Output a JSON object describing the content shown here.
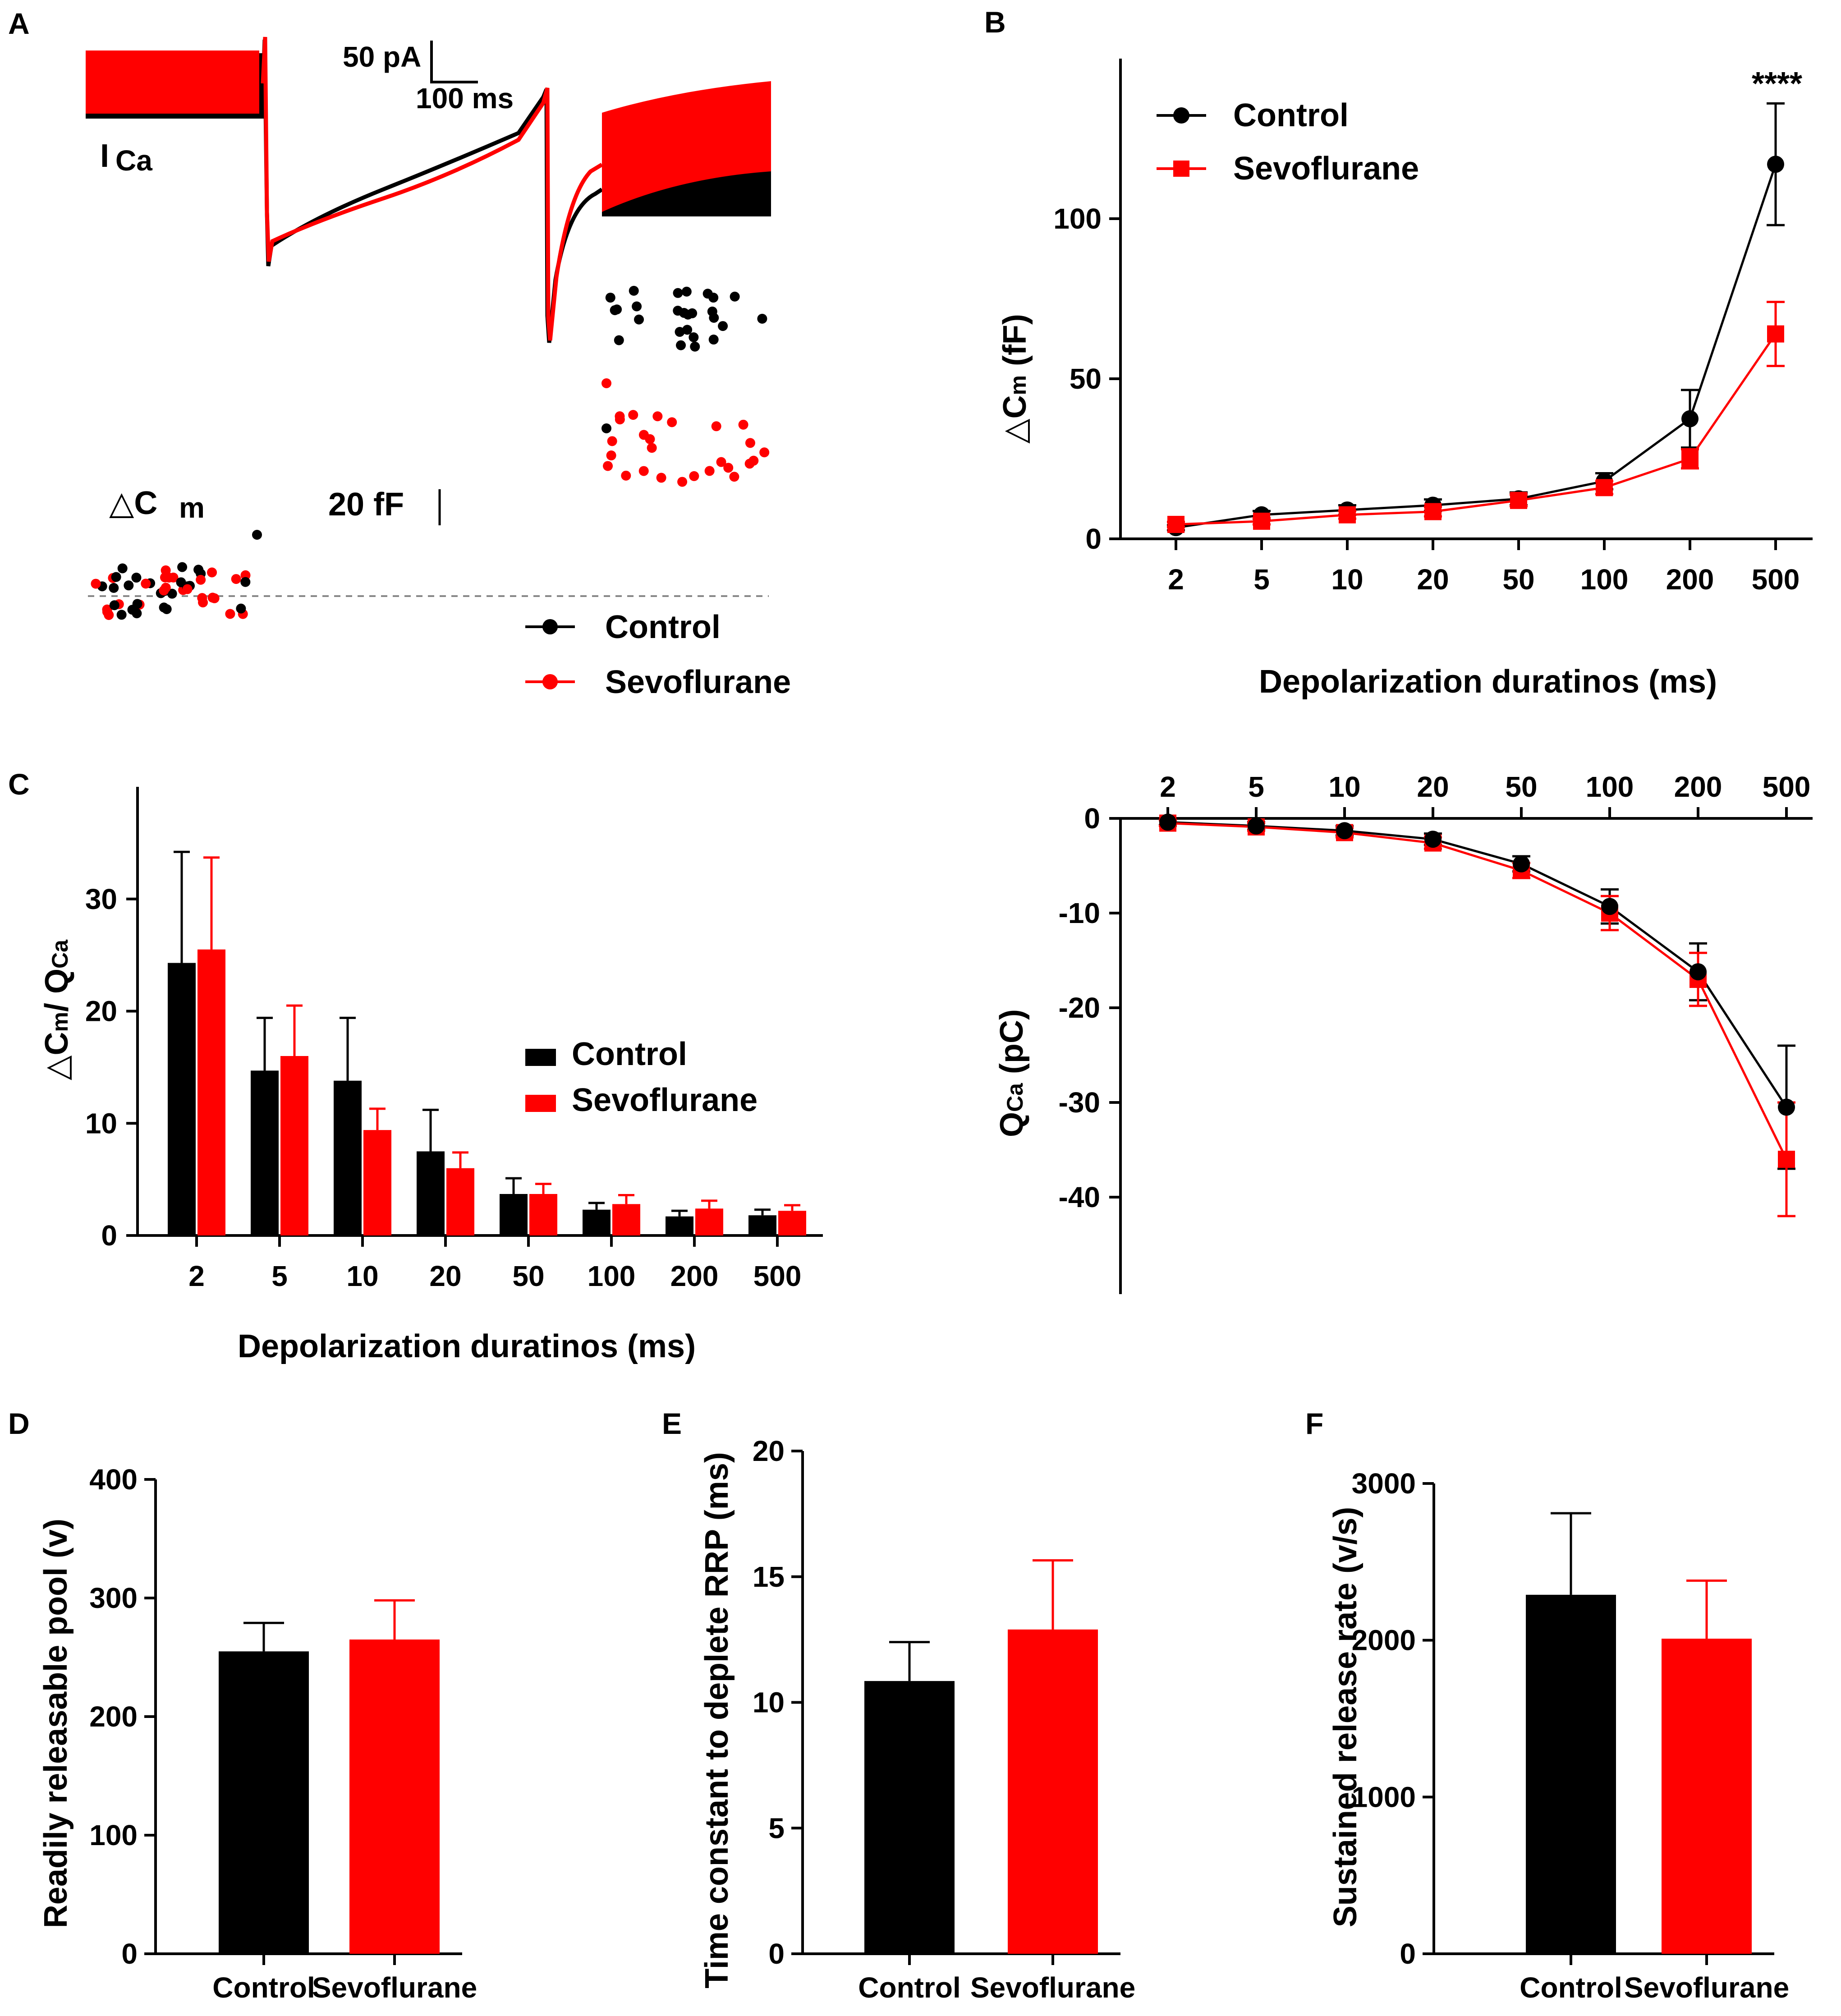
{
  "colors": {
    "control": "#000000",
    "sevoflurane": "#ff0000",
    "baseline": "#888888"
  },
  "panels": {
    "a": "A",
    "b": "B",
    "c": "C",
    "d": "D",
    "e": "E",
    "f": "F"
  },
  "traces": {
    "ica_label": "I",
    "ica_sub": "Ca",
    "scale_current": "50 pA",
    "scale_time": "100 ms",
    "cm_label": "△C",
    "cm_sub": "m",
    "scale_cap": "20 fF",
    "legend": {
      "control": "Control",
      "sevoflurane": "Sevoflurane"
    }
  },
  "chart_data": [
    {
      "id": "B",
      "type": "line",
      "categories": [
        "2",
        "5",
        "10",
        "20",
        "50",
        "100",
        "200",
        "500"
      ],
      "xlabel": "Depolarization duratinos (ms)",
      "ylabel_main": "△C",
      "ylabel_sub": "m",
      "ylabel_unit": " (fF)",
      "yticks": [
        0,
        50,
        100
      ],
      "ylim": [
        0,
        150
      ],
      "legend": [
        "Control",
        "Sevoflurane"
      ],
      "annotation": "****",
      "series": [
        {
          "name": "Control",
          "values": [
            3.5,
            7.5,
            9.0,
            10.5,
            12.5,
            18.0,
            37.5,
            117.0
          ],
          "errors": [
            0.8,
            1.2,
            1.5,
            1.8,
            2.0,
            2.5,
            9.0,
            19.0
          ]
        },
        {
          "name": "Sevoflurane",
          "values": [
            4.5,
            5.5,
            7.5,
            8.5,
            12.0,
            16.0,
            25.0,
            64.0
          ],
          "errors": [
            0.8,
            1.0,
            1.2,
            1.5,
            1.8,
            2.0,
            3.0,
            10.0
          ]
        }
      ]
    },
    {
      "id": "C",
      "type": "bar",
      "categories": [
        "2",
        "5",
        "10",
        "20",
        "50",
        "100",
        "200",
        "500"
      ],
      "xlabel": "Depolarization duratinos (ms)",
      "ylabel_a": "△C",
      "ylabel_b": "m",
      "ylabel_c": "/ Q",
      "ylabel_d": "Ca",
      "yticks": [
        0,
        10,
        20,
        30
      ],
      "ylim": [
        0,
        40
      ],
      "legend": [
        "Control",
        "Sevoflurane"
      ],
      "series": [
        {
          "name": "Control",
          "values": [
            24.3,
            14.7,
            13.8,
            7.5,
            3.7,
            2.3,
            1.7,
            1.8
          ],
          "errors": [
            9.9,
            4.7,
            5.6,
            3.7,
            1.4,
            0.6,
            0.5,
            0.5
          ]
        },
        {
          "name": "Sevoflurane",
          "values": [
            25.5,
            16.0,
            9.4,
            6.0,
            3.7,
            2.8,
            2.4,
            2.2
          ],
          "errors": [
            8.2,
            4.5,
            1.9,
            1.4,
            0.9,
            0.8,
            0.7,
            0.5
          ]
        }
      ]
    },
    {
      "id": "Qca",
      "type": "line",
      "categories": [
        "2",
        "5",
        "10",
        "20",
        "50",
        "100",
        "200",
        "500"
      ],
      "ylabel_main": "Q",
      "ylabel_sub": "Ca",
      "ylabel_unit": " (pC)",
      "yticks": [
        0,
        -10,
        -20,
        -30,
        -40
      ],
      "ylim": [
        -50,
        0
      ],
      "series": [
        {
          "name": "Control",
          "values": [
            -0.4,
            -0.8,
            -1.3,
            -2.2,
            -4.8,
            -9.3,
            -16.2,
            -30.5
          ],
          "errors": [
            0.3,
            0.4,
            0.5,
            0.6,
            0.8,
            1.8,
            3.0,
            6.5
          ]
        },
        {
          "name": "Sevoflurane",
          "values": [
            -0.5,
            -0.9,
            -1.5,
            -2.6,
            -5.5,
            -10.0,
            -17.0,
            -36.0
          ],
          "errors": [
            0.3,
            0.4,
            0.5,
            0.6,
            0.8,
            1.8,
            2.8,
            6.0
          ]
        }
      ]
    },
    {
      "id": "D",
      "type": "bar",
      "categories": [
        "Control",
        "Sevoflurane"
      ],
      "ylabel": "Readily releasable pool (v)",
      "yticks": [
        0,
        100,
        200,
        300,
        400
      ],
      "ylim": [
        0,
        400
      ],
      "values": [
        255,
        265
      ],
      "errors": [
        24,
        33
      ]
    },
    {
      "id": "E",
      "type": "bar",
      "categories": [
        "Control",
        "Sevoflurane"
      ],
      "ylabel": "Time constant to deplete RRP (ms)",
      "yticks": [
        0,
        5,
        10,
        15,
        20
      ],
      "ylim": [
        0,
        20
      ],
      "values": [
        10.85,
        12.9
      ],
      "errors": [
        1.55,
        2.75
      ]
    },
    {
      "id": "F",
      "type": "bar",
      "categories": [
        "Control",
        "Sevoflurane"
      ],
      "ylabel": "Sustained release rate (v/s)",
      "yticks": [
        0,
        1000,
        2000,
        3000
      ],
      "ylim": [
        0,
        3000
      ],
      "values": [
        2290,
        2010
      ],
      "errors": [
        520,
        370
      ]
    }
  ]
}
